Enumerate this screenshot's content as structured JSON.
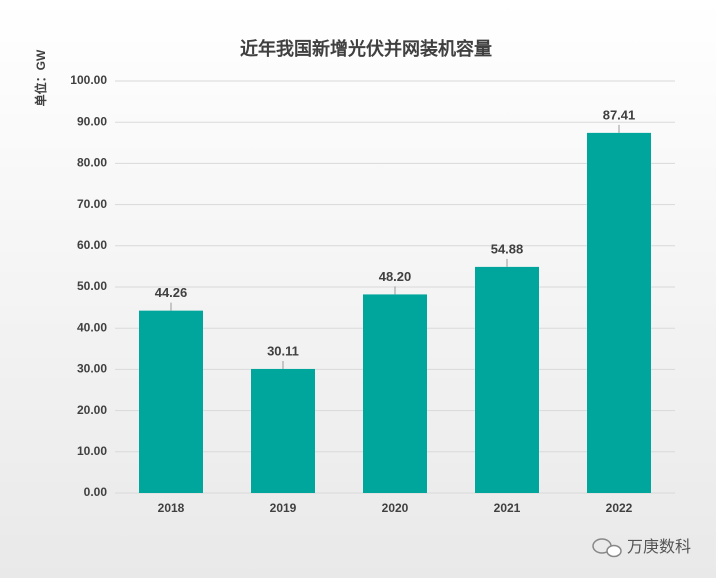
{
  "chart_data": {
    "type": "bar",
    "title": "近年我国新增光伏并网装机容量",
    "y_label": "单位：GW",
    "categories": [
      "2018",
      "2019",
      "2020",
      "2021",
      "2022"
    ],
    "values": [
      44.26,
      30.11,
      48.2,
      54.88,
      87.41
    ],
    "value_labels": [
      "44.26",
      "30.11",
      "48.20",
      "54.88",
      "87.41"
    ],
    "color": "#00a59b",
    "ylim": [
      0,
      100
    ],
    "yticks": [
      {
        "value": 0,
        "label": "0.00"
      },
      {
        "value": 10,
        "label": "10.00"
      },
      {
        "value": 20,
        "label": "20.00"
      },
      {
        "value": 30,
        "label": "30.00"
      },
      {
        "value": 40,
        "label": "40.00"
      },
      {
        "value": 50,
        "label": "50.00"
      },
      {
        "value": 60,
        "label": "60.00"
      },
      {
        "value": 70,
        "label": "70.00"
      },
      {
        "value": 80,
        "label": "80.00"
      },
      {
        "value": 90,
        "label": "90.00"
      },
      {
        "value": 100,
        "label": "100.00"
      }
    ],
    "grid": true,
    "watermark": "万庚数科"
  }
}
